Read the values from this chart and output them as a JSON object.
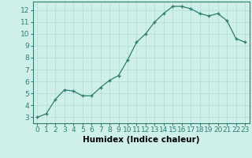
{
  "x": [
    0,
    1,
    2,
    3,
    4,
    5,
    6,
    7,
    8,
    9,
    10,
    11,
    12,
    13,
    14,
    15,
    16,
    17,
    18,
    19,
    20,
    21,
    22,
    23
  ],
  "y": [
    3.0,
    3.3,
    4.5,
    5.3,
    5.2,
    4.8,
    4.8,
    5.5,
    6.1,
    6.5,
    7.8,
    9.3,
    10.0,
    11.0,
    11.7,
    12.3,
    12.3,
    12.1,
    11.7,
    11.5,
    11.7,
    11.1,
    9.6,
    9.3
  ],
  "line_color": "#2e7d6e",
  "marker": "+",
  "bg_color": "#cff0ea",
  "grid_color": "#b8ddd7",
  "xlabel": "Humidex (Indice chaleur)",
  "xlim": [
    -0.5,
    23.5
  ],
  "ylim": [
    2.5,
    12.7
  ],
  "yticks": [
    3,
    4,
    5,
    6,
    7,
    8,
    9,
    10,
    11,
    12
  ],
  "xticks": [
    0,
    1,
    2,
    3,
    4,
    5,
    6,
    7,
    8,
    9,
    10,
    11,
    12,
    13,
    14,
    15,
    16,
    17,
    18,
    19,
    20,
    21,
    22,
    23
  ],
  "xlabel_fontsize": 7.5,
  "tick_fontsize": 6.5,
  "line_width": 0.9,
  "marker_size": 3.5,
  "marker_edge_width": 1.0
}
